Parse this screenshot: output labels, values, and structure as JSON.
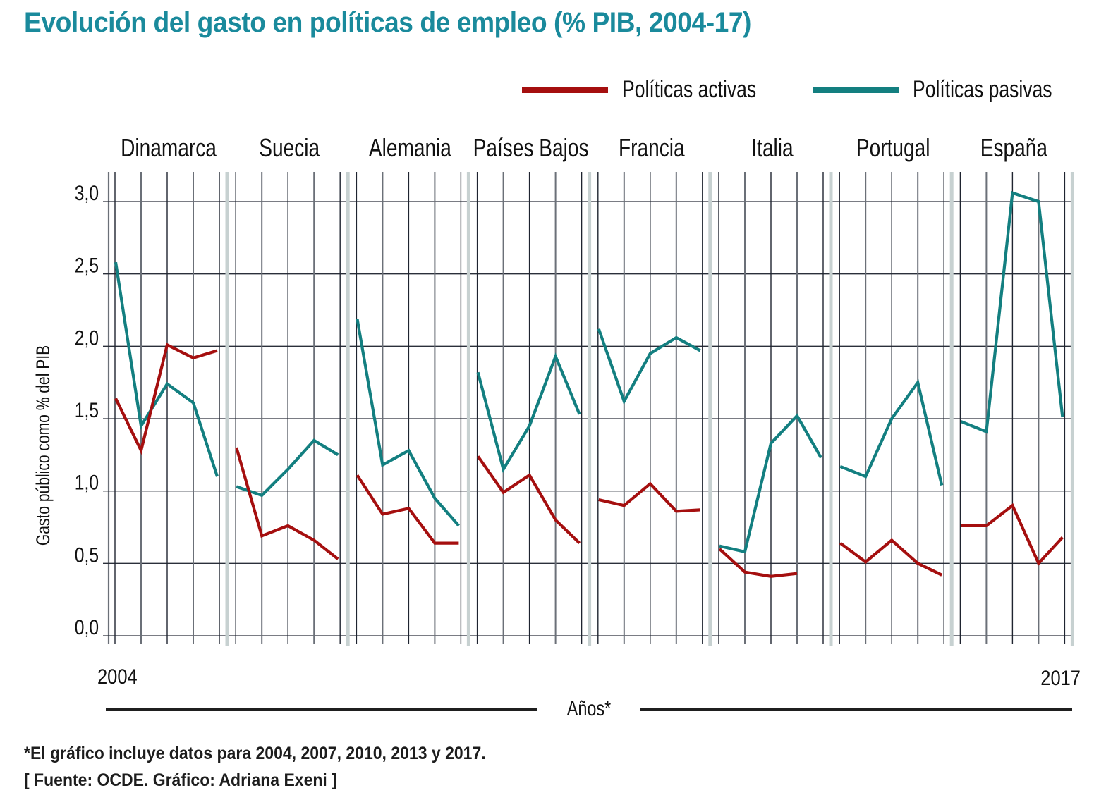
{
  "chart_data": {
    "type": "line",
    "title": "Evolución del gasto en políticas de empleo (% PIB, 2004-17)",
    "xlabel": "Años*",
    "ylabel": "Gasto público como % del PIB",
    "ylim": [
      0,
      3.0
    ],
    "yticks": [
      "0,0",
      "0,5",
      "1,0",
      "1,5",
      "2,0",
      "2,5",
      "3,0"
    ],
    "ytick_values": [
      0,
      0.5,
      1.0,
      1.5,
      2.0,
      2.5,
      3.0
    ],
    "years": [
      2004,
      2007,
      2010,
      2013,
      2017
    ],
    "x_start_label": "2004",
    "x_end_label": "2017",
    "grid": true,
    "legend_position": "top-right",
    "series_meta": [
      {
        "key": "activas",
        "name": "Políticas activas",
        "color": "#a50f0f"
      },
      {
        "key": "pasivas",
        "name": "Políticas pasivas",
        "color": "#137f80"
      }
    ],
    "panels": [
      {
        "country": "Dinamarca",
        "activas": [
          1.64,
          1.28,
          2.01,
          1.92,
          1.97
        ],
        "pasivas": [
          2.58,
          1.45,
          1.74,
          1.61,
          1.1
        ]
      },
      {
        "country": "Suecia",
        "activas": [
          1.3,
          0.69,
          0.76,
          0.66,
          0.53
        ],
        "pasivas": [
          1.03,
          0.97,
          1.15,
          1.35,
          1.25
        ]
      },
      {
        "country": "Alemania",
        "activas": [
          1.11,
          0.84,
          0.88,
          0.64,
          0.64
        ],
        "pasivas": [
          2.19,
          1.18,
          1.28,
          0.95,
          0.76
        ]
      },
      {
        "country": "Países Bajos",
        "activas": [
          1.24,
          0.99,
          1.11,
          0.8,
          0.64
        ],
        "pasivas": [
          1.82,
          1.15,
          1.45,
          1.93,
          1.53
        ]
      },
      {
        "country": "Francia",
        "activas": [
          0.94,
          0.9,
          1.05,
          0.86,
          0.87
        ],
        "pasivas": [
          2.12,
          1.62,
          1.95,
          2.06,
          1.97
        ]
      },
      {
        "country": "Italia",
        "activas": [
          0.6,
          0.44,
          0.41,
          0.43,
          null
        ],
        "pasivas": [
          0.62,
          0.58,
          1.33,
          1.52,
          1.23
        ]
      },
      {
        "country": "Portugal",
        "activas": [
          0.64,
          0.51,
          0.66,
          0.5,
          0.42
        ],
        "pasivas": [
          1.17,
          1.1,
          1.5,
          1.75,
          1.04
        ]
      },
      {
        "country": "España",
        "activas": [
          0.76,
          0.76,
          0.9,
          0.5,
          0.68
        ],
        "pasivas": [
          1.48,
          1.41,
          3.06,
          3.0,
          1.51
        ]
      }
    ]
  },
  "legend": {
    "activas_label": "Políticas activas",
    "pasivas_label": "Políticas pasivas"
  },
  "footnotes": {
    "note": "*El gráfico incluye datos para 2004, 2007, 2010, 2013 y 2017.",
    "source": "[ Fuente: OCDE. Gráfico: Adriana Exeni ]"
  }
}
